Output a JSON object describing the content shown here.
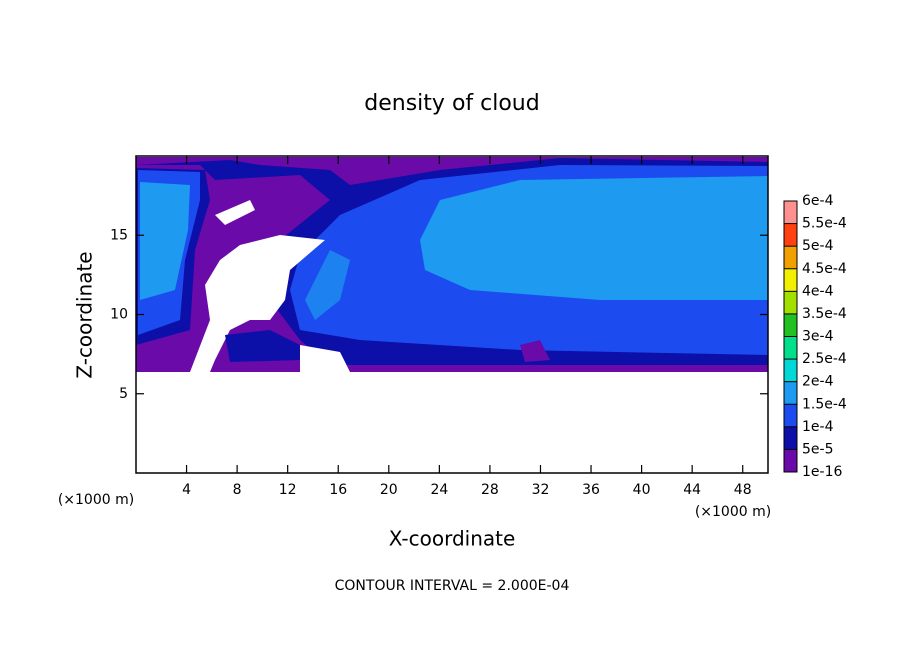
{
  "chart_data": {
    "type": "contour",
    "title": "density of cloud",
    "x_label": "X-coordinate",
    "y_label": "Z-coordinate",
    "x_unit": "(×1000 m)",
    "y_unit": "(×1000 m)",
    "annotation": "CONTOUR INTERVAL = 2.000E-04",
    "xlim": [
      0,
      50
    ],
    "ylim": [
      0,
      20
    ],
    "xticks": [
      4,
      8,
      12,
      16,
      20,
      24,
      28,
      32,
      36,
      40,
      44,
      48
    ],
    "yticks": [
      5,
      10,
      15
    ],
    "colorbar": {
      "levels": [
        {
          "value": 1e-16,
          "label": "1e-16"
        },
        {
          "value": 5e-05,
          "label": "5e-5"
        },
        {
          "value": 0.0001,
          "label": "1e-4"
        },
        {
          "value": 0.00015,
          "label": "1.5e-4"
        },
        {
          "value": 0.0002,
          "label": "2e-4"
        },
        {
          "value": 0.00025,
          "label": "2.5e-4"
        },
        {
          "value": 0.0003,
          "label": "3e-4"
        },
        {
          "value": 0.00035,
          "label": "3.5e-4"
        },
        {
          "value": 0.0004,
          "label": "4e-4"
        },
        {
          "value": 0.00045,
          "label": "4.5e-4"
        },
        {
          "value": 0.0005,
          "label": "5e-4"
        },
        {
          "value": 0.00055,
          "label": "5.5e-4"
        },
        {
          "value": 0.0006,
          "label": "6e-4"
        }
      ],
      "colors": [
        "#6a0aa8",
        "#0c10a8",
        "#1c4cf0",
        "#1e9af0",
        "#00d8d8",
        "#00e08a",
        "#22c022",
        "#a2e000",
        "#f0f000",
        "#f0a000",
        "#ff4010",
        "#ff9090"
      ]
    }
  }
}
